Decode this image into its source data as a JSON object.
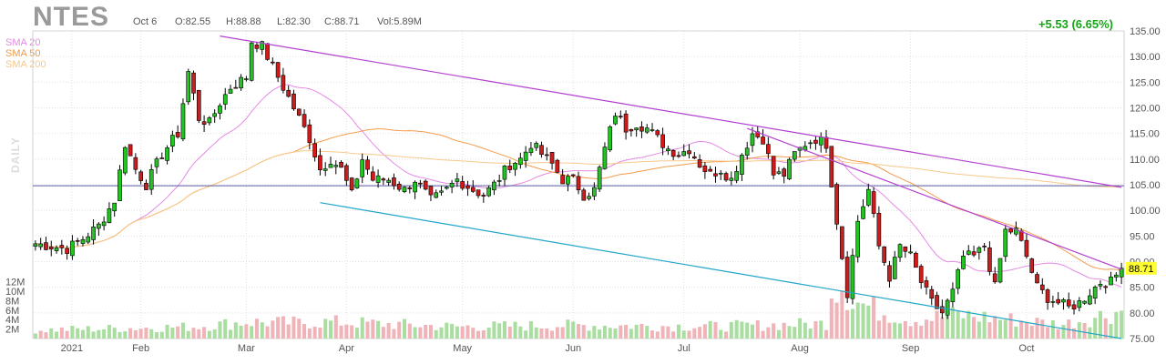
{
  "header": {
    "ticker": "NTES",
    "date": "Oct 6",
    "open": "O:82.55",
    "high": "H:88.88",
    "low": "L:82.30",
    "close": "C:88.71",
    "volume": "Vol:5.89M",
    "change": "+5.53 (6.65%)"
  },
  "legend": [
    {
      "label": "SMA 20",
      "color": "#e58ae5"
    },
    {
      "label": "SMA 50",
      "color": "#f39c4c"
    },
    {
      "label": "SMA 200",
      "color": "#f7c98a"
    }
  ],
  "side_label": "DAILY",
  "last_price_tag": "88.71",
  "colors": {
    "up": "#22c322",
    "down": "#d11b1b",
    "vol_up": "#a9dea0",
    "vol_down": "#f0b3b8",
    "grid": "#e0e0e0",
    "trend_pink": "#b23fd0",
    "trend_blue": "#21a6c9",
    "hline": "#5d5da8",
    "tag_bg": "#ffff33"
  },
  "chart_data": {
    "type": "candlestick",
    "ylim": [
      75,
      135
    ],
    "y_ticks": [
      135,
      130,
      125,
      120,
      115,
      110,
      105,
      100,
      95,
      90,
      85,
      80,
      75
    ],
    "y_tick_labels": [
      "135.00",
      "130.00",
      "125.00",
      "120.00",
      "115.00",
      "110.00",
      "105.00",
      "100.00",
      "95.00",
      "90.00",
      "85.00",
      "80.00",
      "75.00"
    ],
    "volume_ticks": [
      "12M",
      "10M",
      "8M",
      "6M",
      "4M",
      "2M"
    ],
    "volume_tick_values": [
      12,
      10,
      8,
      6,
      4,
      2
    ],
    "month_labels": [
      "2021",
      "Feb",
      "Mar",
      "Apr",
      "May",
      "Jun",
      "Jul",
      "Aug",
      "Sep",
      "Oct"
    ],
    "horizontal_line": 104.8,
    "close_keypoints": [
      [
        0,
        93.5
      ],
      [
        6,
        92.5
      ],
      [
        9,
        94.5
      ],
      [
        12,
        97
      ],
      [
        15,
        102
      ],
      [
        17,
        113
      ],
      [
        19,
        108
      ],
      [
        21,
        105
      ],
      [
        24,
        111
      ],
      [
        27,
        115
      ],
      [
        29,
        127
      ],
      [
        31,
        118
      ],
      [
        33,
        117
      ],
      [
        35,
        121
      ],
      [
        37,
        124
      ],
      [
        40,
        126
      ],
      [
        41,
        133
      ],
      [
        43,
        132
      ],
      [
        45,
        128
      ],
      [
        47,
        124
      ],
      [
        49,
        120
      ],
      [
        52,
        114
      ],
      [
        54,
        108
      ],
      [
        56,
        110
      ],
      [
        58,
        108
      ],
      [
        60,
        103
      ],
      [
        62,
        110
      ],
      [
        64,
        106
      ],
      [
        67,
        106
      ],
      [
        70,
        104
      ],
      [
        72,
        106
      ],
      [
        75,
        102
      ],
      [
        77,
        103
      ],
      [
        80,
        106
      ],
      [
        83,
        104
      ],
      [
        85,
        103
      ],
      [
        87,
        105
      ],
      [
        90,
        109
      ],
      [
        92,
        110
      ],
      [
        94,
        113
      ],
      [
        96,
        111
      ],
      [
        98,
        109
      ],
      [
        100,
        106
      ],
      [
        102,
        106
      ],
      [
        104,
        103
      ],
      [
        106,
        104
      ],
      [
        108,
        112
      ],
      [
        110,
        119
      ],
      [
        112,
        116
      ],
      [
        114,
        117
      ],
      [
        116,
        116
      ],
      [
        118,
        114
      ],
      [
        120,
        112
      ],
      [
        122,
        111
      ],
      [
        124,
        112
      ],
      [
        126,
        109
      ],
      [
        128,
        107
      ],
      [
        130,
        108
      ],
      [
        132,
        106
      ],
      [
        134,
        111
      ],
      [
        136,
        115
      ],
      [
        138,
        114
      ],
      [
        140,
        107
      ],
      [
        142,
        107
      ],
      [
        144,
        111
      ],
      [
        146,
        113
      ],
      [
        148,
        114
      ],
      [
        150,
        113
      ],
      [
        152,
        98
      ],
      [
        154,
        84
      ],
      [
        156,
        98
      ],
      [
        158,
        104
      ],
      [
        160,
        93
      ],
      [
        162,
        87
      ],
      [
        164,
        93
      ],
      [
        166,
        91
      ],
      [
        168,
        86
      ],
      [
        170,
        82
      ],
      [
        172,
        80
      ],
      [
        174,
        84
      ],
      [
        176,
        91
      ],
      [
        178,
        91
      ],
      [
        180,
        93
      ],
      [
        182,
        85
      ],
      [
        184,
        96
      ],
      [
        186,
        96
      ],
      [
        188,
        91
      ],
      [
        190,
        85
      ],
      [
        192,
        83
      ],
      [
        194,
        82
      ],
      [
        196,
        81
      ],
      [
        198,
        82
      ],
      [
        200,
        84
      ],
      [
        202,
        86
      ],
      [
        204,
        86
      ],
      [
        206,
        88.71
      ]
    ],
    "volume_keypoints": [
      [
        0,
        1.8
      ],
      [
        30,
        2.5
      ],
      [
        40,
        3.5
      ],
      [
        50,
        3.3
      ],
      [
        56,
        3.5
      ],
      [
        80,
        2.5
      ],
      [
        100,
        2.8
      ],
      [
        130,
        2.6
      ],
      [
        150,
        3.2
      ],
      [
        151,
        11
      ],
      [
        153,
        12
      ],
      [
        155,
        8
      ],
      [
        160,
        6
      ],
      [
        166,
        4
      ],
      [
        175,
        5
      ],
      [
        185,
        4
      ],
      [
        195,
        3
      ],
      [
        206,
        5.89
      ]
    ],
    "trendlines": [
      {
        "name": "upper",
        "points": [
          [
            "Feb 10",
            134
          ],
          [
            "Oct 6",
            104.5
          ]
        ]
      },
      {
        "name": "lower",
        "points": [
          [
            "Mar 9",
            101.5
          ],
          [
            "Oct 6",
            75
          ]
        ]
      },
      {
        "name": "mid",
        "points": [
          [
            "Jul 2",
            116
          ],
          [
            "Oct 6",
            88.5
          ]
        ]
      }
    ]
  }
}
